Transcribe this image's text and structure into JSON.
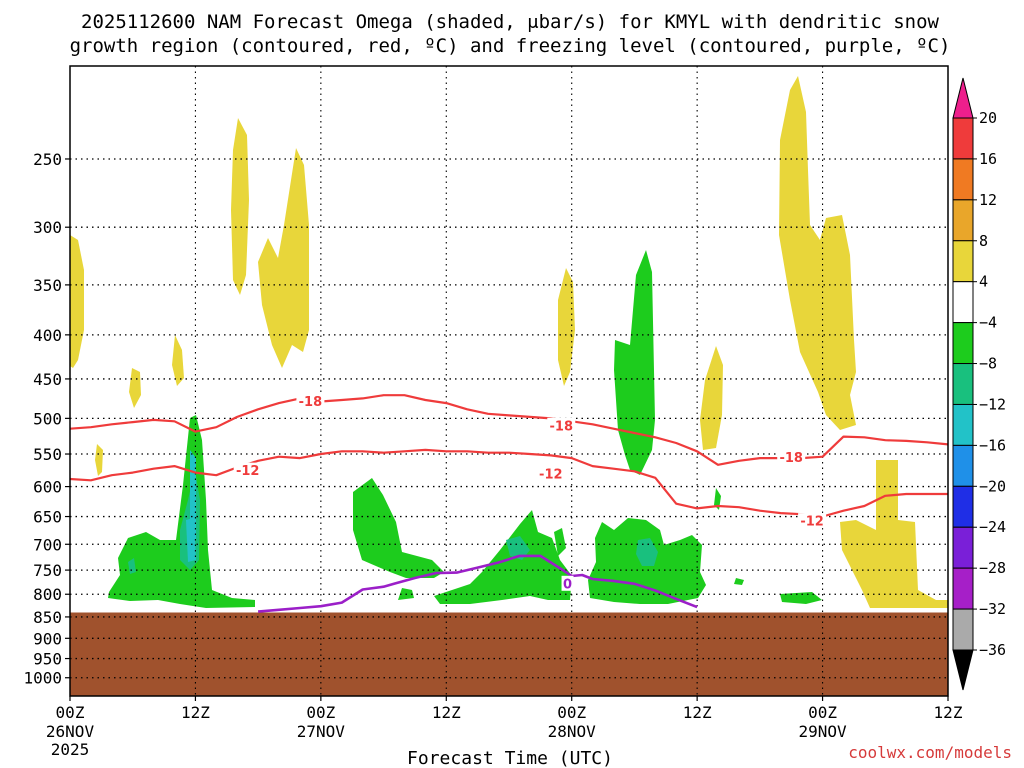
{
  "chart_data": {
    "type": "heatmap",
    "title_line1": "2025112600 NAM Forecast Omega (shaded, μbar/s) for KMYL with dendritic snow",
    "title_line2": "growth region (contoured, red, ºC) and freezing level (contoured, purple, ºC)",
    "xlabel": "Forecast Time (UTC)",
    "credit": "coolwx.com/models",
    "y_axis": {
      "scale": "pressure",
      "unit": "hPa",
      "ylim": [
        1050,
        195
      ],
      "ticks": [
        250,
        300,
        350,
        400,
        450,
        500,
        550,
        600,
        650,
        700,
        750,
        800,
        850,
        900,
        950,
        1000
      ]
    },
    "x_axis": {
      "xlim": [
        0,
        84
      ],
      "ticks": [
        {
          "hour": 0,
          "label": "00Z",
          "date": "26NOV",
          "year": "2025"
        },
        {
          "hour": 12,
          "label": "12Z",
          "date": "",
          "year": ""
        },
        {
          "hour": 24,
          "label": "00Z",
          "date": "27NOV",
          "year": ""
        },
        {
          "hour": 36,
          "label": "12Z",
          "date": "",
          "year": ""
        },
        {
          "hour": 48,
          "label": "00Z",
          "date": "28NOV",
          "year": ""
        },
        {
          "hour": 60,
          "label": "12Z",
          "date": "",
          "year": ""
        },
        {
          "hour": 72,
          "label": "00Z",
          "date": "29NOV",
          "year": ""
        },
        {
          "hour": 84,
          "label": "12Z",
          "date": "",
          "year": ""
        }
      ],
      "grid": true
    },
    "colorbar": {
      "levels": [
        "20",
        "16",
        "12",
        "8",
        "4",
        "−4",
        "−8",
        "−12",
        "−16",
        "−20",
        "−24",
        "−28",
        "−32",
        "−36"
      ],
      "colors": [
        "#ee1f8c",
        "#ef3b3b",
        "#f07a22",
        "#e9a62a",
        "#e8d63a",
        "#ffffff",
        "#1dcc1d",
        "#19c07e",
        "#22c2c8",
        "#1f90e8",
        "#1f2ee6",
        "#7a1fd8",
        "#a61fc8",
        "#aaaaaa",
        "#000000"
      ]
    },
    "terrain": {
      "pressure_top": 840,
      "color": "#a0522d"
    },
    "series": [
      {
        "name": "-18",
        "kind": "dendritic snow growth region",
        "color": "#ef3b3b",
        "x": [
          0,
          2,
          4,
          6,
          8,
          10,
          12,
          14,
          16,
          18,
          20,
          22,
          24,
          26,
          28,
          30,
          32,
          34,
          36,
          38,
          40,
          42,
          44,
          46,
          48,
          50,
          52,
          54,
          56,
          58,
          60,
          62,
          64,
          66,
          68,
          70,
          72,
          74,
          76,
          78,
          80,
          82,
          84
        ],
        "p": [
          514,
          512,
          508,
          505,
          502,
          504,
          518,
          512,
          498,
          488,
          480,
          474,
          478,
          476,
          474,
          470,
          470,
          476,
          480,
          488,
          494,
          496,
          498,
          500,
          504,
          508,
          514,
          520,
          526,
          534,
          546,
          566,
          560,
          556,
          556,
          556,
          554,
          525,
          526,
          530,
          531,
          533,
          536
        ],
        "labels": [
          {
            "x": 23,
            "p": 478,
            "text": "-18"
          },
          {
            "x": 47,
            "p": 510,
            "text": "-18"
          },
          {
            "x": 69,
            "p": 555,
            "text": "-18"
          }
        ]
      },
      {
        "name": "-12",
        "kind": "dendritic snow growth region",
        "color": "#ef3b3b",
        "x": [
          0,
          2,
          4,
          6,
          8,
          10,
          12,
          14,
          16,
          18,
          20,
          22,
          24,
          26,
          28,
          30,
          32,
          34,
          36,
          38,
          40,
          42,
          44,
          46,
          48,
          50,
          52,
          54,
          56,
          58,
          60,
          62,
          64,
          66,
          68,
          70,
          72,
          74,
          76,
          78,
          80,
          82,
          84
        ],
        "p": [
          588,
          590,
          582,
          578,
          572,
          568,
          578,
          582,
          570,
          560,
          554,
          556,
          550,
          546,
          546,
          548,
          546,
          544,
          546,
          546,
          548,
          548,
          550,
          552,
          556,
          568,
          572,
          576,
          586,
          628,
          636,
          632,
          634,
          640,
          644,
          646,
          650,
          640,
          632,
          615,
          612,
          612,
          612
        ],
        "labels": [
          {
            "x": 17,
            "p": 575,
            "text": "-12"
          },
          {
            "x": 46,
            "p": 580,
            "text": "-12"
          },
          {
            "x": 71,
            "p": 658,
            "text": "-12"
          }
        ]
      },
      {
        "name": "0",
        "kind": "freezing level",
        "color": "#9b1fc8",
        "x": [
          18,
          20,
          22,
          24,
          26,
          28,
          30,
          31,
          33,
          35,
          37,
          39,
          41,
          43,
          45,
          47,
          48,
          49,
          50,
          52,
          54,
          56,
          58,
          60
        ],
        "p": [
          838,
          834,
          830,
          826,
          818,
          790,
          784,
          778,
          766,
          756,
          755,
          745,
          735,
          722,
          722,
          748,
          762,
          760,
          768,
          772,
          778,
          792,
          810,
          828
        ],
        "labels": [
          {
            "x": 47.6,
            "p": 778,
            "text": "0"
          }
        ]
      }
    ]
  }
}
